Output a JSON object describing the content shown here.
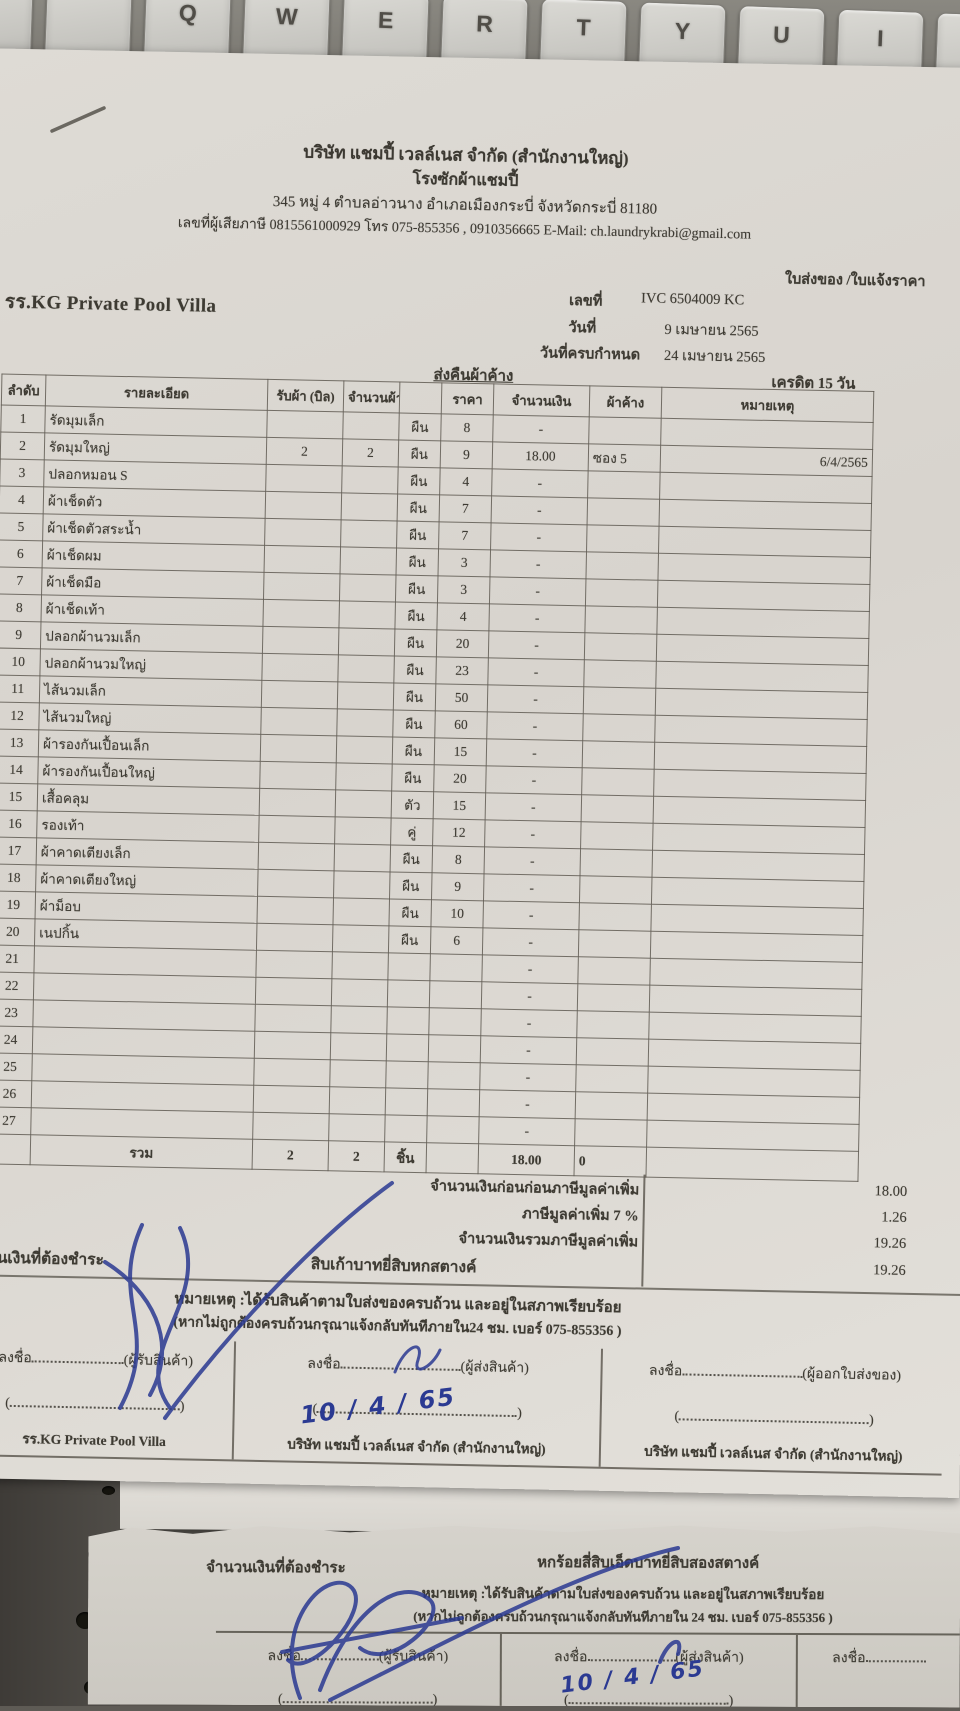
{
  "keyboard": {
    "keys": [
      "",
      "",
      "Q",
      "W",
      "E",
      "R",
      "T",
      "Y",
      "U",
      "I",
      ""
    ]
  },
  "invoice": {
    "company": {
      "name_line": "บริษัท แชมปี้ เวลล์เนส จำกัด (สำนักงานใหญ่)",
      "laundry_line": "โรงซักผ้าแชมปี้",
      "address_line": "345 หมู่ 4 ตำบลอ่าวนาง อำเภอเมืองกระบี่ จังหวัดกระบี่ 81180",
      "contact_line": "เลขที่ผู้เสียภาษี 0815561000929 โทร 075-855356 , 0910356665  E-Mail: ch.laundrykrabi@gmail.com"
    },
    "doc_type": "ใบส่งของ /ใบแจ้งราคา",
    "customer": "รร.KG Private Pool Villa",
    "meta": {
      "no_label": "เลขที่",
      "no": "IVC 6504009 KC",
      "date_label": "วันที่",
      "date": "9 เมษายน 2565",
      "due_label": "วันที่ครบกำหนด",
      "due": "24 เมษายน 2565",
      "return_label": "ส่งคืนผ้าค้าง",
      "credit": "เครดิต 15 วัน"
    },
    "table": {
      "headers": {
        "no": "ลำดับ",
        "desc": "รายละเอียด",
        "bill": "รับผ้า (บิล)",
        "qty": "จำนวนผ้า",
        "unit": "",
        "price": "ราคา",
        "amount": "จำนวนเงิน",
        "pending": "ผ้าค้าง",
        "note": "หมายเหตุ"
      },
      "rows": [
        {
          "no": "1",
          "desc": "รัดมุมเล็ก",
          "bill": "",
          "qty": "",
          "unit": "ผืน",
          "price": "8",
          "amount": "-",
          "pending": "",
          "note": ""
        },
        {
          "no": "2",
          "desc": "รัดมุมใหญ่",
          "bill": "2",
          "qty": "2",
          "unit": "ผืน",
          "price": "9",
          "amount": "18.00",
          "pending": "ซอง 5",
          "note": "6/4/2565"
        },
        {
          "no": "3",
          "desc": "ปลอกหมอน S",
          "bill": "",
          "qty": "",
          "unit": "ผืน",
          "price": "4",
          "amount": "-",
          "pending": "",
          "note": ""
        },
        {
          "no": "4",
          "desc": "ผ้าเช็ดตัว",
          "bill": "",
          "qty": "",
          "unit": "ผืน",
          "price": "7",
          "amount": "-",
          "pending": "",
          "note": ""
        },
        {
          "no": "5",
          "desc": "ผ้าเช็ดตัวสระน้ำ",
          "bill": "",
          "qty": "",
          "unit": "ผืน",
          "price": "7",
          "amount": "-",
          "pending": "",
          "note": ""
        },
        {
          "no": "6",
          "desc": "ผ้าเช็ดผม",
          "bill": "",
          "qty": "",
          "unit": "ผืน",
          "price": "3",
          "amount": "-",
          "pending": "",
          "note": ""
        },
        {
          "no": "7",
          "desc": "ผ้าเช็ดมือ",
          "bill": "",
          "qty": "",
          "unit": "ผืน",
          "price": "3",
          "amount": "-",
          "pending": "",
          "note": ""
        },
        {
          "no": "8",
          "desc": "ผ้าเช็ดเท้า",
          "bill": "",
          "qty": "",
          "unit": "ผืน",
          "price": "4",
          "amount": "-",
          "pending": "",
          "note": ""
        },
        {
          "no": "9",
          "desc": "ปลอกผ้านวมเล็ก",
          "bill": "",
          "qty": "",
          "unit": "ผืน",
          "price": "20",
          "amount": "-",
          "pending": "",
          "note": ""
        },
        {
          "no": "10",
          "desc": "ปลอกผ้านวมใหญ่",
          "bill": "",
          "qty": "",
          "unit": "ผืน",
          "price": "23",
          "amount": "-",
          "pending": "",
          "note": ""
        },
        {
          "no": "11",
          "desc": "ไส้นวมเล็ก",
          "bill": "",
          "qty": "",
          "unit": "ผืน",
          "price": "50",
          "amount": "-",
          "pending": "",
          "note": ""
        },
        {
          "no": "12",
          "desc": "ไส้นวมใหญ่",
          "bill": "",
          "qty": "",
          "unit": "ผืน",
          "price": "60",
          "amount": "-",
          "pending": "",
          "note": ""
        },
        {
          "no": "13",
          "desc": "ผ้ารองกันเปื้อนเล็ก",
          "bill": "",
          "qty": "",
          "unit": "ผืน",
          "price": "15",
          "amount": "-",
          "pending": "",
          "note": ""
        },
        {
          "no": "14",
          "desc": "ผ้ารองกันเปื้อนใหญ่",
          "bill": "",
          "qty": "",
          "unit": "ผืน",
          "price": "20",
          "amount": "-",
          "pending": "",
          "note": ""
        },
        {
          "no": "15",
          "desc": "เสื้อคลุม",
          "bill": "",
          "qty": "",
          "unit": "ตัว",
          "price": "15",
          "amount": "-",
          "pending": "",
          "note": ""
        },
        {
          "no": "16",
          "desc": "รองเท้า",
          "bill": "",
          "qty": "",
          "unit": "คู่",
          "price": "12",
          "amount": "-",
          "pending": "",
          "note": ""
        },
        {
          "no": "17",
          "desc": "ผ้าคาดเตียงเล็ก",
          "bill": "",
          "qty": "",
          "unit": "ผืน",
          "price": "8",
          "amount": "-",
          "pending": "",
          "note": ""
        },
        {
          "no": "18",
          "desc": "ผ้าคาดเตียงใหญ่",
          "bill": "",
          "qty": "",
          "unit": "ผืน",
          "price": "9",
          "amount": "-",
          "pending": "",
          "note": ""
        },
        {
          "no": "19",
          "desc": "ผ้าม็อบ",
          "bill": "",
          "qty": "",
          "unit": "ผืน",
          "price": "10",
          "amount": "-",
          "pending": "",
          "note": ""
        },
        {
          "no": "20",
          "desc": "เนปกิ้น",
          "bill": "",
          "qty": "",
          "unit": "ผืน",
          "price": "6",
          "amount": "-",
          "pending": "",
          "note": ""
        },
        {
          "no": "21",
          "desc": "",
          "bill": "",
          "qty": "",
          "unit": "",
          "price": "",
          "amount": "-",
          "pending": "",
          "note": ""
        },
        {
          "no": "22",
          "desc": "",
          "bill": "",
          "qty": "",
          "unit": "",
          "price": "",
          "amount": "-",
          "pending": "",
          "note": ""
        },
        {
          "no": "23",
          "desc": "",
          "bill": "",
          "qty": "",
          "unit": "",
          "price": "",
          "amount": "-",
          "pending": "",
          "note": ""
        },
        {
          "no": "24",
          "desc": "",
          "bill": "",
          "qty": "",
          "unit": "",
          "price": "",
          "amount": "-",
          "pending": "",
          "note": ""
        },
        {
          "no": "25",
          "desc": "",
          "bill": "",
          "qty": "",
          "unit": "",
          "price": "",
          "amount": "-",
          "pending": "",
          "note": ""
        },
        {
          "no": "26",
          "desc": "",
          "bill": "",
          "qty": "",
          "unit": "",
          "price": "",
          "amount": "-",
          "pending": "",
          "note": ""
        },
        {
          "no": "27",
          "desc": "",
          "bill": "",
          "qty": "",
          "unit": "",
          "price": "",
          "amount": "-",
          "pending": "",
          "note": ""
        }
      ],
      "total": {
        "no": "",
        "desc": "รวม",
        "bill": "2",
        "qty": "2",
        "unit": "ชิ้น",
        "price": "",
        "amount": "18.00",
        "pending": "0",
        "note": ""
      }
    },
    "summary": [
      {
        "label": "จำนวนเงินก่อนก่อนภาษีมูลค่าเพิ่ม",
        "value": "18.00"
      },
      {
        "label": "ภาษีมูลค่าเพิ่ม 7 %",
        "value": "1.26"
      },
      {
        "label": "จำนวนเงินรวมภาษีมูลค่าเพิ่ม",
        "value": "19.26"
      }
    ],
    "amount_due": {
      "label": "จำนวนเงินที่ต้องชำระ",
      "words": "สิบเก้าบาทยี่สิบหกสตางค์",
      "value": "19.26"
    },
    "notes": {
      "line1": "หมายเหตุ :ได้รับสินค้าตามใบส่งของครบถ้วน และอยู่ในสภาพเรียบร้อย",
      "line2": "(หากไม่ถูกต้องครบถ้วนกรุณาแจ้งกลับทันทีภายใน24 ชม.  เบอร์ 075-855356 )"
    },
    "signatures": {
      "sign_label": "ลงชื่อ",
      "col1": {
        "role": "(ผู้รับสินค้า)",
        "company": "รร.KG Private Pool Villa"
      },
      "col2": {
        "role": "(ผู้ส่งสินค้า)",
        "company": "บริษัท แชมปี้ เวลล์เนส จำกัด (สำนักงานใหญ่)",
        "handwritten_date": "10 / 4 / 65"
      },
      "col3": {
        "role": "(ผู้ออกใบส่งของ)",
        "company": "บริษัท แชมปี้ เวลล์เนส จำกัด (สำนักงานใหญ่)"
      }
    }
  },
  "second_sheet": {
    "amount_due_label": "จำนวนเงินที่ต้องชำระ",
    "amount_words": "หกร้อยสี่สิบเอ็ดบาทยี่สิบสองสตางค์",
    "note1": "หมายเหตุ :ได้รับสินค้าตามใบส่งของครบถ้วน และอยู่ในสภาพเรียบร้อย",
    "note2": "(หากไม่ถูกต้องครบถ้วนกรุณาแจ้งกลับทันทีภายใน 24 ชม.  เบอร์ 075-855356 )",
    "sign_label": "ลงชื่อ",
    "col1_role": "(ผู้รับสินค้า)",
    "col2_role": "(ผู้ส่งสินค้า)",
    "col3_label": "ลงชื่อ",
    "handwritten_date": "10 / 4 / 65"
  },
  "colors": {
    "pen_blue": "#2b3a92",
    "paper": "#dcd8d2",
    "paper2": "#d2cfc8",
    "keycap": "#c9c8c3",
    "ink": "#3e3b33"
  }
}
